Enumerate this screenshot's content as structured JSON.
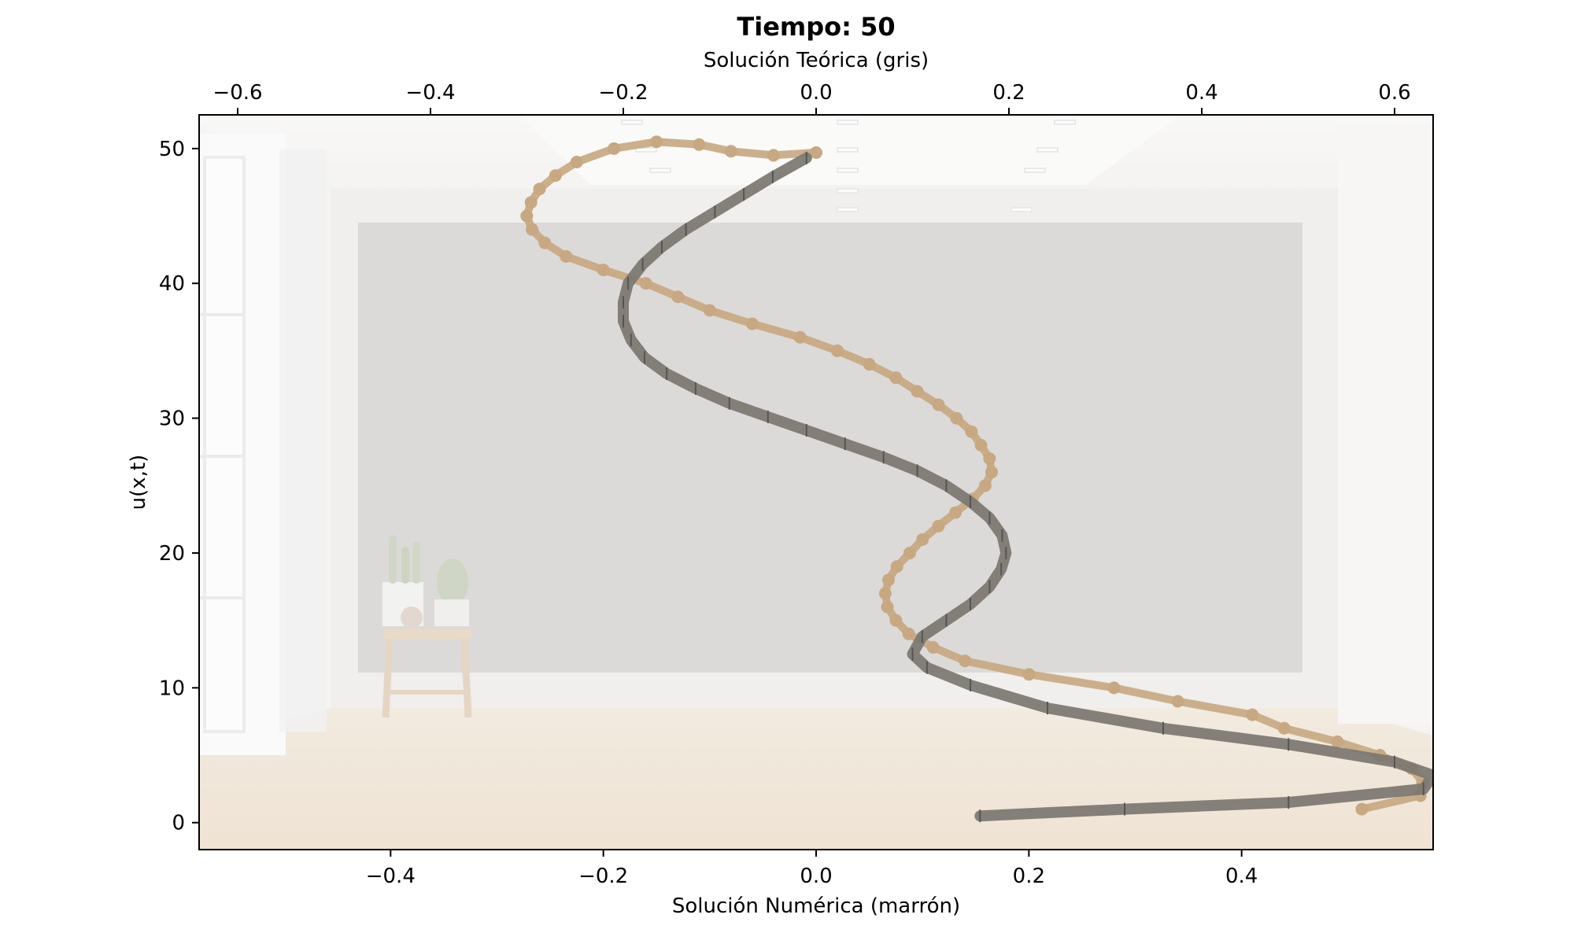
{
  "chart_data": {
    "type": "line",
    "title": "Tiempo: 50",
    "xlabel": "Solución Numérica (marrón)",
    "x2label": "Solución Teórica (gris)",
    "ylabel": "u(x,t)",
    "xlim": [
      -0.58,
      0.58
    ],
    "x2lim": [
      -0.64,
      0.64
    ],
    "ylim": [
      -2,
      52.5
    ],
    "xticks": [
      -0.4,
      -0.2,
      0.0,
      0.2,
      0.4
    ],
    "xtick_labels": [
      "−0.4",
      "−0.2",
      "0.0",
      "0.2",
      "0.4"
    ],
    "x2ticks": [
      -0.6,
      -0.4,
      -0.2,
      0.0,
      0.2,
      0.4,
      0.6
    ],
    "x2tick_labels": [
      "−0.6",
      "−0.4",
      "−0.2",
      "0.0",
      "0.2",
      "0.4",
      "0.6"
    ],
    "yticks": [
      0,
      10,
      20,
      30,
      40,
      50
    ],
    "ytick_labels": [
      "0",
      "10",
      "20",
      "30",
      "40",
      "50"
    ],
    "grid": false,
    "legend": "none",
    "background": "photo of an empty room (light gray wall, windows on left, wooden floor, small stool with plants)",
    "series": [
      {
        "axis": "bottom",
        "color": "#c8a882",
        "marker": "circle",
        "line_width": 10,
        "x": [
          0.513,
          0.568,
          0.57,
          0.56,
          0.53,
          0.49,
          0.44,
          0.41,
          0.34,
          0.28,
          0.2,
          0.14,
          0.11,
          0.087,
          0.075,
          0.067,
          0.065,
          0.068,
          0.076,
          0.088,
          0.1,
          0.115,
          0.131,
          0.147,
          0.159,
          0.165,
          0.163,
          0.155,
          0.146,
          0.132,
          0.115,
          0.095,
          0.075,
          0.05,
          0.02,
          -0.015,
          -0.06,
          -0.1,
          -0.13,
          -0.16,
          -0.2,
          -0.235,
          -0.255,
          -0.267,
          -0.272,
          -0.268,
          -0.26,
          -0.245,
          -0.225,
          -0.19,
          -0.15,
          -0.11,
          -0.08,
          -0.04,
          0.0
        ],
        "y": [
          1,
          2,
          3,
          4,
          5,
          6,
          7,
          8,
          9,
          10,
          11,
          12,
          13,
          14,
          15,
          16,
          17,
          18,
          19,
          20,
          21,
          22,
          23,
          24,
          25,
          26,
          27,
          28,
          29,
          30,
          31,
          32,
          33,
          34,
          35,
          36,
          37,
          38,
          39,
          40,
          41,
          42,
          43,
          44,
          45,
          46,
          47,
          48,
          49,
          50,
          50.5,
          50.3,
          49.8,
          49.5,
          49.7
        ]
      },
      {
        "axis": "top",
        "color": "#7b7670",
        "marker": "tick",
        "line_width": 14,
        "x": [
          0.17,
          0.32,
          0.49,
          0.63,
          0.64,
          0.6,
          0.49,
          0.36,
          0.24,
          0.16,
          0.115,
          0.1,
          0.11,
          0.135,
          0.16,
          0.18,
          0.192,
          0.197,
          0.193,
          0.18,
          0.16,
          0.135,
          0.105,
          0.07,
          0.03,
          -0.01,
          -0.05,
          -0.09,
          -0.125,
          -0.155,
          -0.178,
          -0.192,
          -0.2,
          -0.2,
          -0.195,
          -0.18,
          -0.16,
          -0.135,
          -0.105,
          -0.075,
          -0.045,
          -0.01
        ],
        "y": [
          0.5,
          1,
          1.5,
          2.5,
          3.5,
          4.5,
          5.8,
          7,
          8.5,
          10.2,
          11.5,
          12.5,
          13.8,
          15,
          16.2,
          17.5,
          18.8,
          20,
          21.3,
          22.6,
          23.8,
          25,
          26.1,
          27.1,
          28.1,
          29.1,
          30.1,
          31.1,
          32.2,
          33.3,
          34.5,
          35.8,
          37.2,
          38.6,
          40,
          41.4,
          42.7,
          44,
          45.3,
          46.6,
          47.9,
          49.3
        ]
      }
    ]
  }
}
